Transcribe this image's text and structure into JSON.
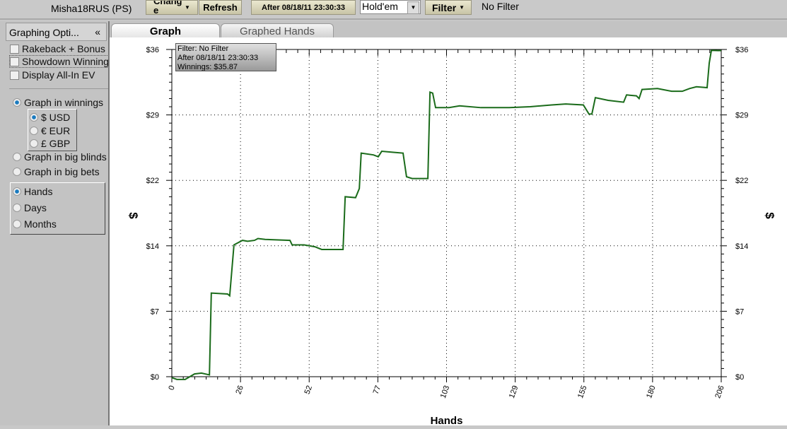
{
  "toolbar": {
    "player": "Misha18RUS (PS)",
    "change_label": "Chang e",
    "refresh_label": "Refresh",
    "date_filter": "After 08/18/11 23:30:33",
    "game_select": "Hold'em",
    "filter_label": "Filter",
    "filter_status": "No Filter"
  },
  "left_panel": {
    "title": "Graphing Opti...",
    "collapse_icon": "«",
    "checkboxes": [
      {
        "label": "Rakeback + Bonus",
        "checked": false
      },
      {
        "label": "Showdown Winnings",
        "checked": false
      },
      {
        "label": "Display All-In EV",
        "checked": false
      }
    ],
    "graph_mode": [
      {
        "label": "Graph in winnings",
        "checked": true
      },
      {
        "label": "Graph in big blinds",
        "checked": false
      },
      {
        "label": "Graph in big bets",
        "checked": false
      }
    ],
    "currency": [
      {
        "label": "$ USD",
        "checked": true
      },
      {
        "label": "€ EUR",
        "checked": false
      },
      {
        "label": "£ GBP",
        "checked": false
      }
    ],
    "x_unit": [
      {
        "label": "Hands",
        "checked": true
      },
      {
        "label": "Days",
        "checked": false
      },
      {
        "label": "Months",
        "checked": false
      }
    ]
  },
  "tabs": [
    {
      "label": "Graph",
      "active": true
    },
    {
      "label": "Graphed Hands",
      "active": false
    }
  ],
  "tooltip": {
    "line1": "Filter: No Filter",
    "line2": "After 08/18/11 23:30:33",
    "line3": "Winnings: $35.87"
  },
  "chart_data": {
    "type": "line",
    "xlabel": "Hands",
    "ylabel": "$",
    "xlim": [
      0,
      206
    ],
    "ylim": [
      0,
      36
    ],
    "xticks": [
      "0",
      "26",
      "52",
      "77",
      "103",
      "129",
      "155",
      "180",
      "206"
    ],
    "yticks": [
      "$0",
      "$7",
      "$14",
      "$22",
      "$29",
      "$36"
    ],
    "grid": true,
    "line_color": "#1a6b1a",
    "x": [
      0,
      1.9,
      5,
      8.5,
      11.1,
      14.1,
      14.8,
      20.9,
      21.7,
      23.3,
      26.5,
      28.4,
      31,
      32.3,
      35,
      44.3,
      45.1,
      46.9,
      49.6,
      53.6,
      56.2,
      64.2,
      65,
      68.9,
      70.3,
      71,
      75.6,
      77.4,
      78.7,
      82.7,
      86.7,
      88,
      90.1,
      96,
      96.8,
      97.8,
      98.9,
      103.9,
      107.9,
      115.9,
      121.2,
      126.5,
      134.4,
      142.4,
      147.7,
      154.3,
      156.4,
      157.5,
      158.8,
      163.6,
      169.4,
      170.5,
      174.2,
      175.2,
      176.3,
      182.1,
      187.4,
      191.4,
      194.1,
      196.7,
      200.7,
      201.5,
      202.3,
      206
    ],
    "y": [
      -0.1,
      -0.3,
      -0.3,
      0.3,
      0.4,
      0.2,
      9.2,
      9.1,
      8.9,
      14.5,
      15,
      14.9,
      15,
      15.2,
      15.1,
      15,
      14.5,
      14.5,
      14.5,
      14.3,
      14,
      14,
      19.8,
      19.7,
      20.7,
      24.6,
      24.4,
      24.2,
      24.8,
      24.7,
      24.6,
      22,
      21.8,
      21.8,
      31.3,
      31.2,
      29.6,
      29.6,
      29.8,
      29.6,
      29.6,
      29.6,
      29.7,
      29.9,
      30,
      29.9,
      28.9,
      28.9,
      30.7,
      30.4,
      30.2,
      31,
      30.9,
      30.6,
      31.6,
      31.7,
      31.4,
      31.4,
      31.7,
      31.9,
      31.8,
      34.5,
      35.9,
      35.87
    ]
  }
}
